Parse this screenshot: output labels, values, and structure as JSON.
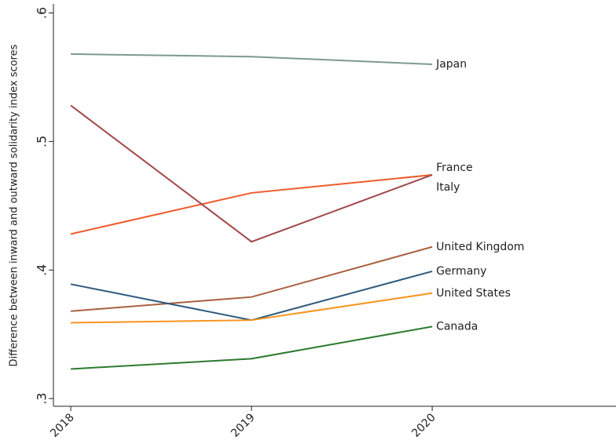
{
  "chart_data": {
    "type": "line",
    "y_label": "Difference between inward and outward solidarity index scores",
    "x": [
      2018,
      2019,
      2020
    ],
    "xlim": [
      2017.904,
      2021.017
    ],
    "xticks": [
      2018,
      2019,
      2020
    ],
    "ylim": [
      0.294,
      0.607
    ],
    "yticks": [
      {
        "value": 0.3,
        "label": ".3"
      },
      {
        "value": 0.4,
        "label": ".4"
      },
      {
        "value": 0.5,
        "label": ".5"
      },
      {
        "value": 0.6,
        "label": ".6"
      }
    ],
    "series": [
      {
        "name": "Japan",
        "color": "#7d9a8f",
        "values": [
          0.568,
          0.566,
          0.56
        ]
      },
      {
        "name": "France",
        "color": "#f05a28",
        "values": [
          0.428,
          0.46,
          0.474
        ]
      },
      {
        "name": "Italy",
        "color": "#a0484a",
        "values": [
          0.528,
          0.422,
          0.474
        ]
      },
      {
        "name": "United Kingdom",
        "color": "#a9603e",
        "values": [
          0.368,
          0.379,
          0.418
        ]
      },
      {
        "name": "Germany",
        "color": "#2e5a7e",
        "values": [
          0.389,
          0.361,
          0.399
        ]
      },
      {
        "name": "United States",
        "color": "#f7941d",
        "values": [
          0.359,
          0.361,
          0.382
        ]
      },
      {
        "name": "Canada",
        "color": "#2d7a2f",
        "values": [
          0.323,
          0.331,
          0.356
        ]
      }
    ]
  }
}
